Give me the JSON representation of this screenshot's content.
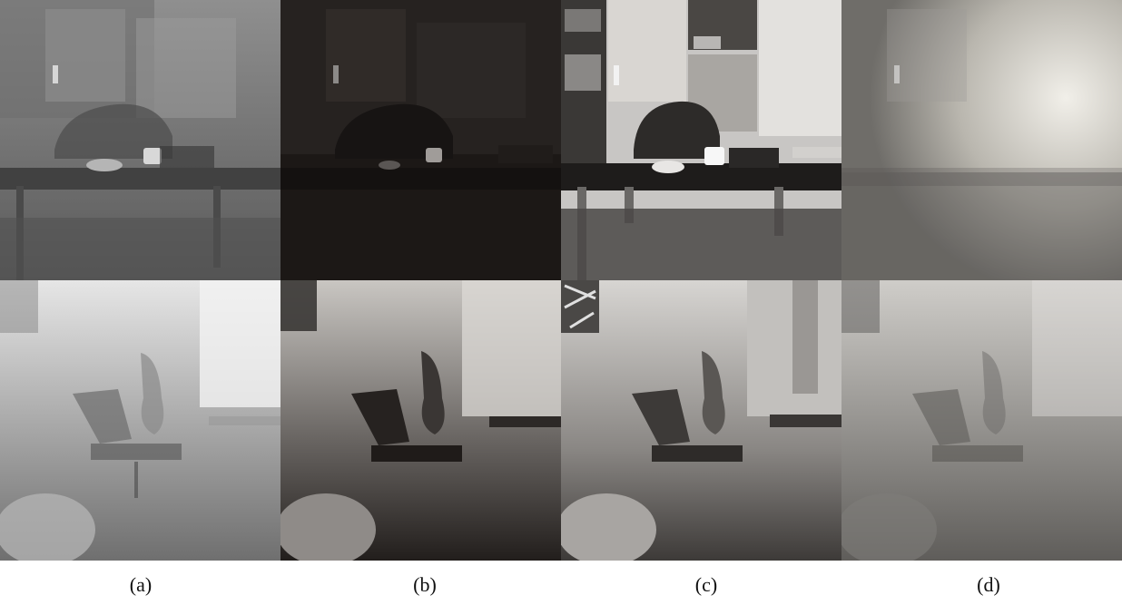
{
  "captions": {
    "a": "(a)",
    "b": "(b)",
    "c": "(c)",
    "d": "(d)"
  },
  "panels": {
    "top": [
      {
        "column": "a",
        "scene": "office",
        "variant": "hazy"
      },
      {
        "column": "b",
        "scene": "office",
        "variant": "dark"
      },
      {
        "column": "c",
        "scene": "office",
        "variant": "clear"
      },
      {
        "column": "d",
        "scene": "office",
        "variant": "washed-out"
      }
    ],
    "bottom": [
      {
        "column": "a",
        "scene": "bedroom",
        "variant": "hazy"
      },
      {
        "column": "b",
        "scene": "bedroom",
        "variant": "dark"
      },
      {
        "column": "c",
        "scene": "bedroom",
        "variant": "clear"
      },
      {
        "column": "d",
        "scene": "bedroom",
        "variant": "washed-out"
      }
    ]
  },
  "colors": {
    "background": "#ffffff",
    "caption_text": "#111111"
  }
}
